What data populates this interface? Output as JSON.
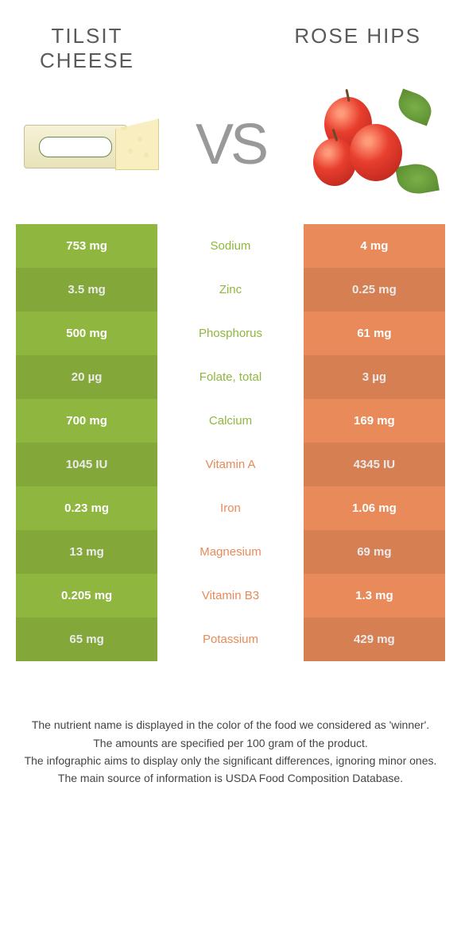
{
  "colors": {
    "left": "#8fb63f",
    "right": "#e88a5a",
    "background": "#ffffff"
  },
  "foodLeft": {
    "title": "TILSIT\nCHEESE"
  },
  "foodRight": {
    "title": "ROSE HIPS"
  },
  "vs": "VS",
  "table": {
    "rows": [
      {
        "left": "753 mg",
        "label": "Sodium",
        "right": "4 mg",
        "winner": "left"
      },
      {
        "left": "3.5 mg",
        "label": "Zinc",
        "right": "0.25 mg",
        "winner": "left"
      },
      {
        "left": "500 mg",
        "label": "Phosphorus",
        "right": "61 mg",
        "winner": "left"
      },
      {
        "left": "20 µg",
        "label": "Folate, total",
        "right": "3 µg",
        "winner": "left"
      },
      {
        "left": "700 mg",
        "label": "Calcium",
        "right": "169 mg",
        "winner": "left"
      },
      {
        "left": "1045 IU",
        "label": "Vitamin A",
        "right": "4345 IU",
        "winner": "right"
      },
      {
        "left": "0.23 mg",
        "label": "Iron",
        "right": "1.06 mg",
        "winner": "right"
      },
      {
        "left": "13 mg",
        "label": "Magnesium",
        "right": "69 mg",
        "winner": "right"
      },
      {
        "left": "0.205 mg",
        "label": "Vitamin B3",
        "right": "1.3 mg",
        "winner": "right"
      },
      {
        "left": "65 mg",
        "label": "Potassium",
        "right": "429 mg",
        "winner": "right"
      }
    ]
  },
  "footnotes": [
    "The nutrient name is displayed in the color of the food we considered as 'winner'.",
    "The amounts are specified per 100 gram of the product.",
    "The infographic aims to display only the significant differences, ignoring minor ones.",
    "The main source of information is USDA Food Composition Database."
  ]
}
